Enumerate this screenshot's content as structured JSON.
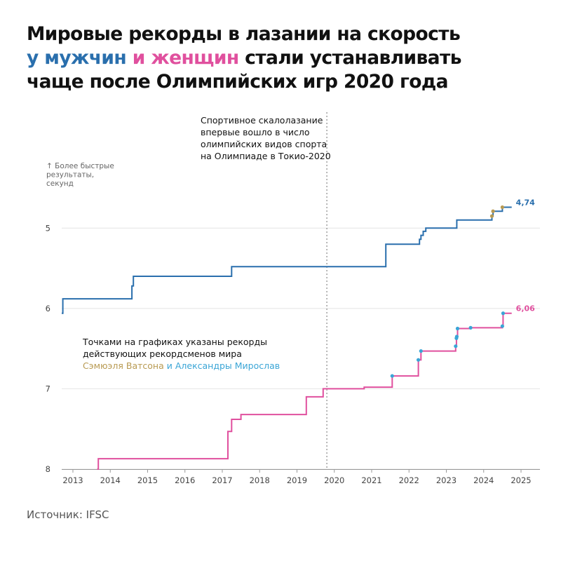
{
  "title": {
    "line1": "Мировые рекорды в лазании на скорость",
    "men": "у мужчин",
    "women": "и женщин",
    "line2_rest": " стали устанавливать",
    "line3": "чаще после Олимпийских игр 2020 года"
  },
  "olympic_note": [
    "Спортивное скалолазание",
    "впервые вошло в число",
    "олимпийских видов спорта",
    "на Олимпиаде в Токио-2020"
  ],
  "dots_note": {
    "line1": "Точками на графиках указаны рекорды",
    "line2": "действующих рекордсменов мира",
    "watson": "Сэмюэля Ватсона",
    "miroslaw": "и Александры Мирослав"
  },
  "source": "Источник: IFSC",
  "colors": {
    "men": "#2a6fad",
    "women": "#e0509e",
    "watson": "#b89a52",
    "miroslaw": "#3aa5d6",
    "grid": "#e4e4e4",
    "divider": "#888888"
  },
  "chart_data": {
    "type": "line",
    "step": "after",
    "ylabel": [
      "↑ Более быстрые",
      "результаты,",
      "секунд"
    ],
    "xlim": [
      2012.7,
      2025
    ],
    "ylim": [
      8,
      4.5
    ],
    "y_inverted": true,
    "grid": true,
    "x_ticks": [
      2013,
      2014,
      2015,
      2016,
      2017,
      2018,
      2019,
      2020,
      2021,
      2022,
      2023,
      2024,
      2025
    ],
    "y_ticks": [
      5,
      6,
      7,
      8
    ],
    "olympics_x": 2019.8,
    "series": [
      {
        "key": "men",
        "end_label": "4,74",
        "points": [
          [
            2012.7,
            6.06
          ],
          [
            2012.73,
            5.88
          ],
          [
            2014.58,
            5.72
          ],
          [
            2014.62,
            5.6
          ],
          [
            2017.25,
            5.48
          ],
          [
            2021.38,
            5.2
          ],
          [
            2022.28,
            5.14
          ],
          [
            2022.32,
            5.09
          ],
          [
            2022.38,
            5.04
          ],
          [
            2022.45,
            5.0
          ],
          [
            2023.28,
            4.9
          ],
          [
            2024.22,
            4.85
          ],
          [
            2024.25,
            4.79
          ],
          [
            2024.5,
            4.74
          ],
          [
            2024.75,
            4.74
          ]
        ],
        "dots": [
          [
            2024.22,
            4.85,
            "watson"
          ],
          [
            2024.25,
            4.79,
            "watson"
          ],
          [
            2024.5,
            4.74,
            "watson"
          ]
        ]
      },
      {
        "key": "women",
        "end_label": "6,06",
        "points": [
          [
            2013.65,
            8.0
          ],
          [
            2013.68,
            7.87
          ],
          [
            2017.15,
            7.53
          ],
          [
            2017.25,
            7.38
          ],
          [
            2017.5,
            7.32
          ],
          [
            2019.25,
            7.1
          ],
          [
            2019.7,
            7.0
          ],
          [
            2020.8,
            6.98
          ],
          [
            2021.55,
            6.84
          ],
          [
            2022.25,
            6.64
          ],
          [
            2022.32,
            6.53
          ],
          [
            2023.25,
            6.47
          ],
          [
            2023.27,
            6.37
          ],
          [
            2023.28,
            6.35
          ],
          [
            2023.3,
            6.25
          ],
          [
            2023.65,
            6.24
          ],
          [
            2024.5,
            6.22
          ],
          [
            2024.52,
            6.06
          ],
          [
            2024.75,
            6.06
          ]
        ],
        "dots": [
          [
            2021.55,
            6.84,
            "miroslaw"
          ],
          [
            2022.25,
            6.64,
            "miroslaw"
          ],
          [
            2022.32,
            6.53,
            "miroslaw"
          ],
          [
            2023.25,
            6.47,
            "miroslaw"
          ],
          [
            2023.27,
            6.37,
            "miroslaw"
          ],
          [
            2023.28,
            6.35,
            "miroslaw"
          ],
          [
            2023.3,
            6.25,
            "miroslaw"
          ],
          [
            2023.65,
            6.24,
            "miroslaw"
          ],
          [
            2024.5,
            6.22,
            "miroslaw"
          ],
          [
            2024.52,
            6.06,
            "miroslaw"
          ]
        ]
      }
    ]
  }
}
